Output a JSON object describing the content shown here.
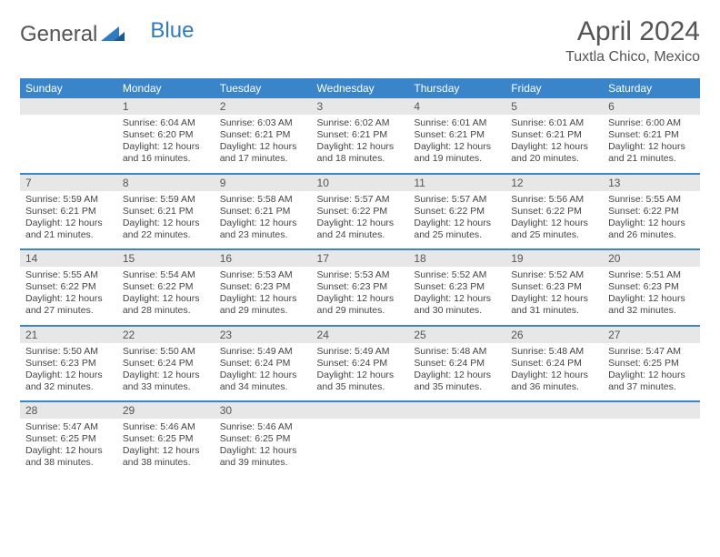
{
  "logo": {
    "text1": "General",
    "text2": "Blue"
  },
  "title": "April 2024",
  "location": "Tuxtla Chico, Mexico",
  "colors": {
    "header_bg": "#3a85c9",
    "header_text": "#ffffff",
    "daynum_bg": "#e7e7e7",
    "row_divider": "#3a85c9",
    "text": "#444444",
    "logo_blue": "#2f7bbf",
    "background": "#ffffff"
  },
  "day_headers": [
    "Sunday",
    "Monday",
    "Tuesday",
    "Wednesday",
    "Thursday",
    "Friday",
    "Saturday"
  ],
  "weeks": [
    [
      {
        "num": "",
        "sunrise": "",
        "sunset": "",
        "daylight": ""
      },
      {
        "num": "1",
        "sunrise": "Sunrise: 6:04 AM",
        "sunset": "Sunset: 6:20 PM",
        "daylight": "Daylight: 12 hours and 16 minutes."
      },
      {
        "num": "2",
        "sunrise": "Sunrise: 6:03 AM",
        "sunset": "Sunset: 6:21 PM",
        "daylight": "Daylight: 12 hours and 17 minutes."
      },
      {
        "num": "3",
        "sunrise": "Sunrise: 6:02 AM",
        "sunset": "Sunset: 6:21 PM",
        "daylight": "Daylight: 12 hours and 18 minutes."
      },
      {
        "num": "4",
        "sunrise": "Sunrise: 6:01 AM",
        "sunset": "Sunset: 6:21 PM",
        "daylight": "Daylight: 12 hours and 19 minutes."
      },
      {
        "num": "5",
        "sunrise": "Sunrise: 6:01 AM",
        "sunset": "Sunset: 6:21 PM",
        "daylight": "Daylight: 12 hours and 20 minutes."
      },
      {
        "num": "6",
        "sunrise": "Sunrise: 6:00 AM",
        "sunset": "Sunset: 6:21 PM",
        "daylight": "Daylight: 12 hours and 21 minutes."
      }
    ],
    [
      {
        "num": "7",
        "sunrise": "Sunrise: 5:59 AM",
        "sunset": "Sunset: 6:21 PM",
        "daylight": "Daylight: 12 hours and 21 minutes."
      },
      {
        "num": "8",
        "sunrise": "Sunrise: 5:59 AM",
        "sunset": "Sunset: 6:21 PM",
        "daylight": "Daylight: 12 hours and 22 minutes."
      },
      {
        "num": "9",
        "sunrise": "Sunrise: 5:58 AM",
        "sunset": "Sunset: 6:21 PM",
        "daylight": "Daylight: 12 hours and 23 minutes."
      },
      {
        "num": "10",
        "sunrise": "Sunrise: 5:57 AM",
        "sunset": "Sunset: 6:22 PM",
        "daylight": "Daylight: 12 hours and 24 minutes."
      },
      {
        "num": "11",
        "sunrise": "Sunrise: 5:57 AM",
        "sunset": "Sunset: 6:22 PM",
        "daylight": "Daylight: 12 hours and 25 minutes."
      },
      {
        "num": "12",
        "sunrise": "Sunrise: 5:56 AM",
        "sunset": "Sunset: 6:22 PM",
        "daylight": "Daylight: 12 hours and 25 minutes."
      },
      {
        "num": "13",
        "sunrise": "Sunrise: 5:55 AM",
        "sunset": "Sunset: 6:22 PM",
        "daylight": "Daylight: 12 hours and 26 minutes."
      }
    ],
    [
      {
        "num": "14",
        "sunrise": "Sunrise: 5:55 AM",
        "sunset": "Sunset: 6:22 PM",
        "daylight": "Daylight: 12 hours and 27 minutes."
      },
      {
        "num": "15",
        "sunrise": "Sunrise: 5:54 AM",
        "sunset": "Sunset: 6:22 PM",
        "daylight": "Daylight: 12 hours and 28 minutes."
      },
      {
        "num": "16",
        "sunrise": "Sunrise: 5:53 AM",
        "sunset": "Sunset: 6:23 PM",
        "daylight": "Daylight: 12 hours and 29 minutes."
      },
      {
        "num": "17",
        "sunrise": "Sunrise: 5:53 AM",
        "sunset": "Sunset: 6:23 PM",
        "daylight": "Daylight: 12 hours and 29 minutes."
      },
      {
        "num": "18",
        "sunrise": "Sunrise: 5:52 AM",
        "sunset": "Sunset: 6:23 PM",
        "daylight": "Daylight: 12 hours and 30 minutes."
      },
      {
        "num": "19",
        "sunrise": "Sunrise: 5:52 AM",
        "sunset": "Sunset: 6:23 PM",
        "daylight": "Daylight: 12 hours and 31 minutes."
      },
      {
        "num": "20",
        "sunrise": "Sunrise: 5:51 AM",
        "sunset": "Sunset: 6:23 PM",
        "daylight": "Daylight: 12 hours and 32 minutes."
      }
    ],
    [
      {
        "num": "21",
        "sunrise": "Sunrise: 5:50 AM",
        "sunset": "Sunset: 6:23 PM",
        "daylight": "Daylight: 12 hours and 32 minutes."
      },
      {
        "num": "22",
        "sunrise": "Sunrise: 5:50 AM",
        "sunset": "Sunset: 6:24 PM",
        "daylight": "Daylight: 12 hours and 33 minutes."
      },
      {
        "num": "23",
        "sunrise": "Sunrise: 5:49 AM",
        "sunset": "Sunset: 6:24 PM",
        "daylight": "Daylight: 12 hours and 34 minutes."
      },
      {
        "num": "24",
        "sunrise": "Sunrise: 5:49 AM",
        "sunset": "Sunset: 6:24 PM",
        "daylight": "Daylight: 12 hours and 35 minutes."
      },
      {
        "num": "25",
        "sunrise": "Sunrise: 5:48 AM",
        "sunset": "Sunset: 6:24 PM",
        "daylight": "Daylight: 12 hours and 35 minutes."
      },
      {
        "num": "26",
        "sunrise": "Sunrise: 5:48 AM",
        "sunset": "Sunset: 6:24 PM",
        "daylight": "Daylight: 12 hours and 36 minutes."
      },
      {
        "num": "27",
        "sunrise": "Sunrise: 5:47 AM",
        "sunset": "Sunset: 6:25 PM",
        "daylight": "Daylight: 12 hours and 37 minutes."
      }
    ],
    [
      {
        "num": "28",
        "sunrise": "Sunrise: 5:47 AM",
        "sunset": "Sunset: 6:25 PM",
        "daylight": "Daylight: 12 hours and 38 minutes."
      },
      {
        "num": "29",
        "sunrise": "Sunrise: 5:46 AM",
        "sunset": "Sunset: 6:25 PM",
        "daylight": "Daylight: 12 hours and 38 minutes."
      },
      {
        "num": "30",
        "sunrise": "Sunrise: 5:46 AM",
        "sunset": "Sunset: 6:25 PM",
        "daylight": "Daylight: 12 hours and 39 minutes."
      },
      {
        "num": "",
        "sunrise": "",
        "sunset": "",
        "daylight": ""
      },
      {
        "num": "",
        "sunrise": "",
        "sunset": "",
        "daylight": ""
      },
      {
        "num": "",
        "sunrise": "",
        "sunset": "",
        "daylight": ""
      },
      {
        "num": "",
        "sunrise": "",
        "sunset": "",
        "daylight": ""
      }
    ]
  ]
}
